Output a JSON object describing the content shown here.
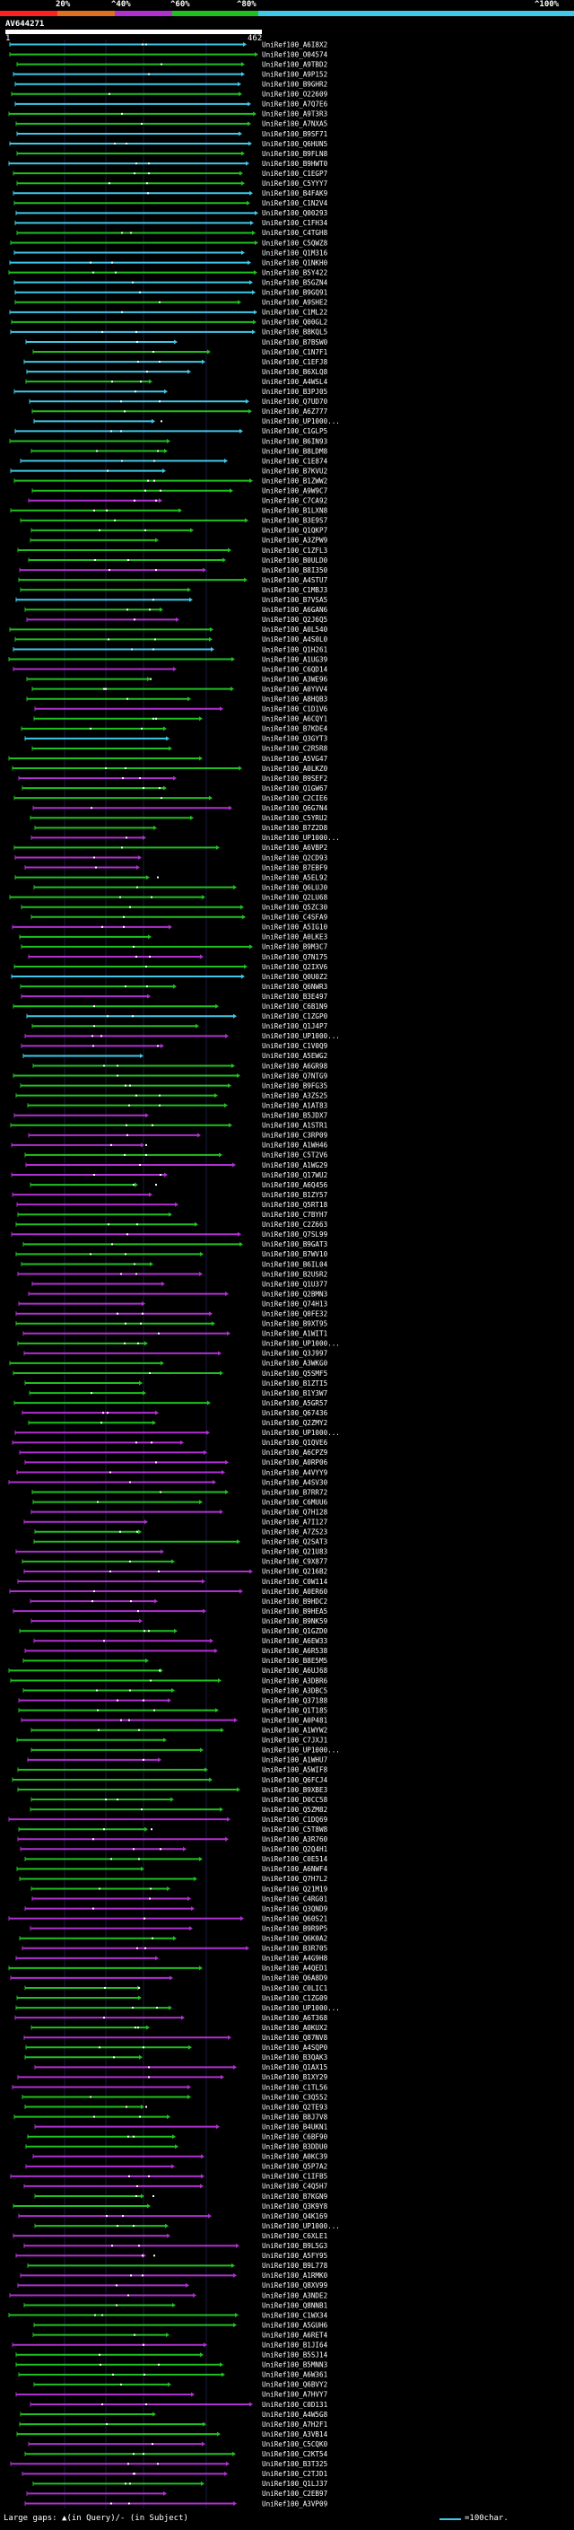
{
  "legend": {
    "ticks": [
      "20%",
      "^40%",
      "^60%",
      "^80%",
      "^100%"
    ],
    "colors": [
      "#ff2020",
      "#e07020",
      "#b030d0",
      "#20c020",
      "#40c8e8"
    ]
  },
  "query": {
    "name": "AV644271",
    "start": "1",
    "end": "462"
  },
  "hit_labels": [
    "UniRef100_A6I8X2",
    "UniRef100_O04574",
    "UniRef100_A9TBD2",
    "UniRef100_A9P152",
    "UniRef100_B9GHR2",
    "UniRef100_O22609",
    "UniRef100_A7Q7E6",
    "UniRef100_A9T3R3",
    "UniRef100_A7NXA5",
    "UniRef100_B9SF71",
    "UniRef100_Q6HUN5",
    "UniRef100_B9FLN8",
    "UniRef100_B9HWT0",
    "UniRef100_C1EGP7",
    "UniRef100_C5YYY7",
    "UniRef100_B4FAK9",
    "UniRef100_C1N2V4",
    "UniRef100_Q00293",
    "UniRef100_C1FH34",
    "UniRef100_C4TGH8",
    "UniRef100_C5QWZ8",
    "UniRef100_Q1M316",
    "UniRef100_Q1NKH0",
    "UniRef100_B5Y422",
    "UniRef100_B5GZN4",
    "UniRef100_B9GQ91",
    "UniRef100_A9SHE2",
    "UniRef100_C1ML22",
    "UniRef100_Q00GL2",
    "UniRef100_B8KQL5",
    "UniRef100_B7BSW0",
    "UniRef100_C1N7F1",
    "UniRef100_C1EFJ8",
    "UniRef100_B6XLQ8",
    "UniRef100_A4WSL4",
    "UniRef100_B3PJ05",
    "UniRef100_Q7UD70",
    "UniRef100_A6Z777",
    "UniRef100_UP1000...",
    "UniRef100_C1GLP5",
    "UniRef100_B6IN93",
    "UniRef100_B8LDM8",
    "UniRef100_C1E874",
    "UniRef100_B7KVU2",
    "UniRef100_B1ZWW2",
    "UniRef100_A9W9C7",
    "UniRef100_C7CA92",
    "UniRef100_B1LXN8",
    "UniRef100_B3E9S7",
    "UniRef100_Q1QKP7",
    "UniRef100_A3ZPW9",
    "UniRef100_C1ZFL3",
    "UniRef100_B0ULD0",
    "UniRef100_B8I350",
    "UniRef100_A4STU7",
    "UniRef100_C1MBJ3",
    "UniRef100_B7VSA5",
    "UniRef100_A6GAN6",
    "UniRef100_Q2J6Q5",
    "UniRef100_A0L540",
    "UniRef100_A4S0L0",
    "UniRef100_Q1H261",
    "UniRef100_A1UG39",
    "UniRef100_C6QD14",
    "UniRef100_A3WE96",
    "UniRef100_A0YVV4",
    "UniRef100_A8HQB3",
    "UniRef100_C1D1V6",
    "UniRef100_A6CQY1",
    "UniRef100_B7KDE4",
    "UniRef100_Q3GYT3",
    "UniRef100_C2R5R8",
    "UniRef100_A5VG47",
    "UniRef100_A0LKZ0",
    "UniRef100_B9SEF2",
    "UniRef100_Q1GW67",
    "UniRef100_C2CIE6",
    "UniRef100_Q6G7N4",
    "UniRef100_C5YRU2",
    "UniRef100_B7Z2D8",
    "UniRef100_UP1000...",
    "UniRef100_A6VBP2",
    "UniRef100_Q2CD93",
    "UniRef100_B7EBF9",
    "UniRef100_A5EL92",
    "UniRef100_Q6LUJ0",
    "UniRef100_Q2LU68",
    "UniRef100_Q5ZC30",
    "UniRef100_C4SFA9",
    "UniRef100_A5IG10",
    "UniRef100_A0LKE3",
    "UniRef100_B9M3C7",
    "UniRef100_Q7N175",
    "UniRef100_Q2IXV6",
    "UniRef100_Q0U0Z2",
    "UniRef100_Q6NWR3",
    "UniRef100_B3E497",
    "UniRef100_C6B1N9",
    "UniRef100_C1ZGP0",
    "UniRef100_Q1J4P7",
    "UniRef100_UP1000...",
    "UniRef100_C1V0Q9",
    "UniRef100_A5EWG2",
    "UniRef100_A6GR98",
    "UniRef100_Q7NTG9",
    "UniRef100_B9FG35",
    "UniRef100_A3ZS25",
    "UniRef100_A1AT83",
    "UniRef100_B5JDX7",
    "UniRef100_A1STR1",
    "UniRef100_C3RP09",
    "UniRef100_A1WH46",
    "UniRef100_C5T2V6",
    "UniRef100_A1WG29",
    "UniRef100_Q17WU2",
    "UniRef100_A6Q456",
    "UniRef100_B1ZY57",
    "UniRef100_Q5RT18",
    "UniRef100_C7BYH7",
    "UniRef100_C2Z663",
    "UniRef100_Q7SL99",
    "UniRef100_B9GAT3",
    "UniRef100_B7WV10",
    "UniRef100_B6IL04",
    "UniRef100_B2USR2",
    "UniRef100_Q1U377",
    "UniRef100_Q2BMN3",
    "UniRef100_Q74H13",
    "UniRef100_Q0FE32",
    "UniRef100_B9XT95",
    "UniRef100_A1WIT1",
    "UniRef100_UP1000...",
    "UniRef100_Q3J997",
    "UniRef100_A3WKG0",
    "UniRef100_Q5SMF5",
    "UniRef100_B1ZTI5",
    "UniRef100_B1Y3W7",
    "UniRef100_A5GR57",
    "UniRef100_Q67436",
    "UniRef100_Q2ZMY2",
    "UniRef100_UP1000...",
    "UniRef100_Q1QVE6",
    "UniRef100_A6CPZ9",
    "UniRef100_A0RP06",
    "UniRef100_A4VYY9",
    "UniRef100_A4SV30",
    "UniRef100_B7RR72",
    "UniRef100_C6MUU6",
    "UniRef100_Q7H128",
    "UniRef100_A7I127",
    "UniRef100_A7ZS23",
    "UniRef100_Q2SAT3",
    "UniRef100_Q21U83",
    "UniRef100_C9X877",
    "UniRef100_Q216B2",
    "UniRef100_C0W114",
    "UniRef100_A0ER60",
    "UniRef100_B9HDC2",
    "UniRef100_B9HEA5",
    "UniRef100_B9NK59",
    "UniRef100_Q1GZD0",
    "UniRef100_A6EW33",
    "UniRef100_A6R538",
    "UniRef100_B8E5M5",
    "UniRef100_A6UJ68",
    "UniRef100_A3DBR6",
    "UniRef100_A3DBC5",
    "UniRef100_Q37188",
    "UniRef100_Q1T185",
    "UniRef100_A0P481",
    "UniRef100_A1WYW2",
    "UniRef100_C7JXJ1",
    "UniRef100_UP1000...",
    "UniRef100_A1WHU7",
    "UniRef100_A5WIF8",
    "UniRef100_Q6FCJ4",
    "UniRef100_B9XBE3",
    "UniRef100_D0CC58",
    "UniRef100_Q5ZM82",
    "UniRef100_C1DQ69",
    "UniRef100_C5T8W8",
    "UniRef100_A3R760",
    "UniRef100_Q2Q4H1",
    "UniRef100_C0E514",
    "UniRef100_A6NWF4",
    "UniRef100_Q7H7L2",
    "UniRef100_Q21M19",
    "UniRef100_C4RG01",
    "UniRef100_Q3QND9",
    "UniRef100_Q60S21",
    "UniRef100_B9R9P5",
    "UniRef100_Q6K0A2",
    "UniRef100_B3R705",
    "UniRef100_A4G9H8",
    "UniRef100_A4QED1",
    "UniRef100_Q6A8D9",
    "UniRef100_C0LIC1",
    "UniRef100_C1ZG09",
    "UniRef100_UP1000...",
    "UniRef100_A6T368",
    "UniRef100_A0KUX2",
    "UniRef100_Q87NV8",
    "UniRef100_A4SQP0",
    "UniRef100_B3QAK3",
    "UniRef100_Q1AX15",
    "UniRef100_B1XY29",
    "UniRef100_C1TL56",
    "UniRef100_C3Q552",
    "UniRef100_Q2TE93",
    "UniRef100_B8J7V8",
    "UniRef100_B4UKN1",
    "UniRef100_C6BF90",
    "UniRef100_B3DDU0",
    "UniRef100_A0KC39",
    "UniRef100_Q5P7A2",
    "UniRef100_C1IFB5",
    "UniRef100_C4Q5H7",
    "UniRef100_B7KGN9",
    "UniRef100_Q3K9Y8",
    "UniRef100_Q4K169",
    "UniRef100_UP1000...",
    "UniRef100_C6XLE1",
    "UniRef100_B9L5G3",
    "UniRef100_A5FY95",
    "UniRef100_B9L778",
    "UniRef100_A1RMK0",
    "UniRef100_Q8XV99",
    "UniRef100_A3NDE2",
    "UniRef100_Q8NNB1",
    "UniRef100_C1WX34",
    "UniRef100_A5GUH6",
    "UniRef100_A6RET4",
    "UniRef100_B1JI64",
    "UniRef100_B5SJ14",
    "UniRef100_B5MNN3",
    "UniRef100_A6W361",
    "UniRef100_Q6BVY2",
    "UniRef100_A7HVY7",
    "UniRef100_C0D131",
    "UniRef100_A4W5G8",
    "UniRef100_A7H2F1",
    "UniRef100_A3VB14",
    "UniRef100_C5CQK0",
    "UniRef100_C2KT54",
    "UniRef100_B3T325",
    "UniRef100_C2TJD1",
    "UniRef100_Q1LJ37",
    "UniRef100_C2EB97",
    "UniRef100_A3VP09"
  ],
  "footer": {
    "left": "Large gaps: ▲(in Query)/- (in Subject)",
    "right": "=100char."
  }
}
